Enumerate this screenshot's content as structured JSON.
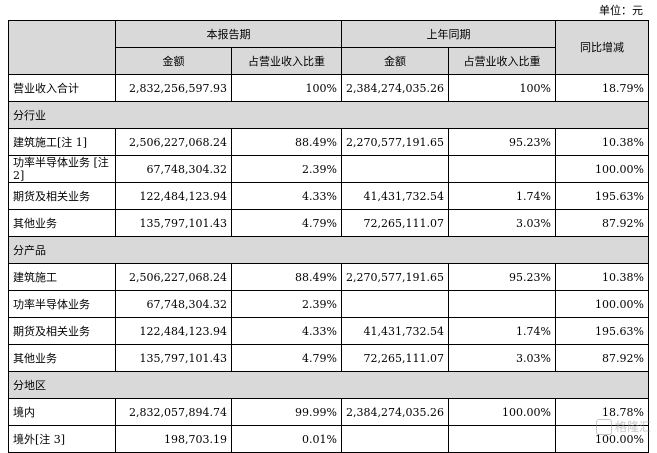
{
  "unit_label": "单位：元",
  "header": {
    "current_period": "本报告期",
    "prior_period": "上年同期",
    "yoy_change": "同比增减",
    "amount": "金额",
    "revenue_share": "占营业收入比重"
  },
  "total": {
    "label": "营业收入合计",
    "cur_amount": "2,832,256,597.93",
    "cur_share": "100%",
    "prev_amount": "2,384,274,035.26",
    "prev_share": "100%",
    "yoy": "18.79%"
  },
  "sections": [
    {
      "title": "分行业",
      "rows": [
        {
          "label": "建筑施工[注 1]",
          "cur_amount": "2,506,227,068.24",
          "cur_share": "88.49%",
          "prev_amount": "2,270,577,191.65",
          "prev_share": "95.23%",
          "yoy": "10.38%"
        },
        {
          "label": "功率半导体业务\n[注 2]",
          "cur_amount": "67,748,304.32",
          "cur_share": "2.39%",
          "prev_amount": "",
          "prev_share": "",
          "yoy": "100.00%"
        },
        {
          "label": "期货及相关业务",
          "cur_amount": "122,484,123.94",
          "cur_share": "4.33%",
          "prev_amount": "41,431,732.54",
          "prev_share": "1.74%",
          "yoy": "195.63%"
        },
        {
          "label": "其他业务",
          "cur_amount": "135,797,101.43",
          "cur_share": "4.79%",
          "prev_amount": "72,265,111.07",
          "prev_share": "3.03%",
          "yoy": "87.92%"
        }
      ]
    },
    {
      "title": "分产品",
      "rows": [
        {
          "label": "建筑施工",
          "cur_amount": "2,506,227,068.24",
          "cur_share": "88.49%",
          "prev_amount": "2,270,577,191.65",
          "prev_share": "95.23%",
          "yoy": "10.38%"
        },
        {
          "label": "功率半导体业务",
          "cur_amount": "67,748,304.32",
          "cur_share": "2.39%",
          "prev_amount": "",
          "prev_share": "",
          "yoy": "100.00%"
        },
        {
          "label": "期货及相关业务",
          "cur_amount": "122,484,123.94",
          "cur_share": "4.33%",
          "prev_amount": "41,431,732.54",
          "prev_share": "1.74%",
          "yoy": "195.63%"
        },
        {
          "label": "其他业务",
          "cur_amount": "135,797,101.43",
          "cur_share": "4.79%",
          "prev_amount": "72,265,111.07",
          "prev_share": "3.03%",
          "yoy": "87.92%"
        }
      ]
    },
    {
      "title": "分地区",
      "rows": [
        {
          "label": "境内",
          "cur_amount": "2,832,057,894.74",
          "cur_share": "99.99%",
          "prev_amount": "2,384,274,035.26",
          "prev_share": "100.00%",
          "yoy": "18.78%"
        },
        {
          "label": "境外[注 3]",
          "cur_amount": "198,703.19",
          "cur_share": "0.01%",
          "prev_amount": "",
          "prev_share": "",
          "yoy": "100.00%"
        }
      ]
    }
  ],
  "watermark": {
    "text": "格隆汇",
    "icon": "watermark-logo-icon"
  }
}
